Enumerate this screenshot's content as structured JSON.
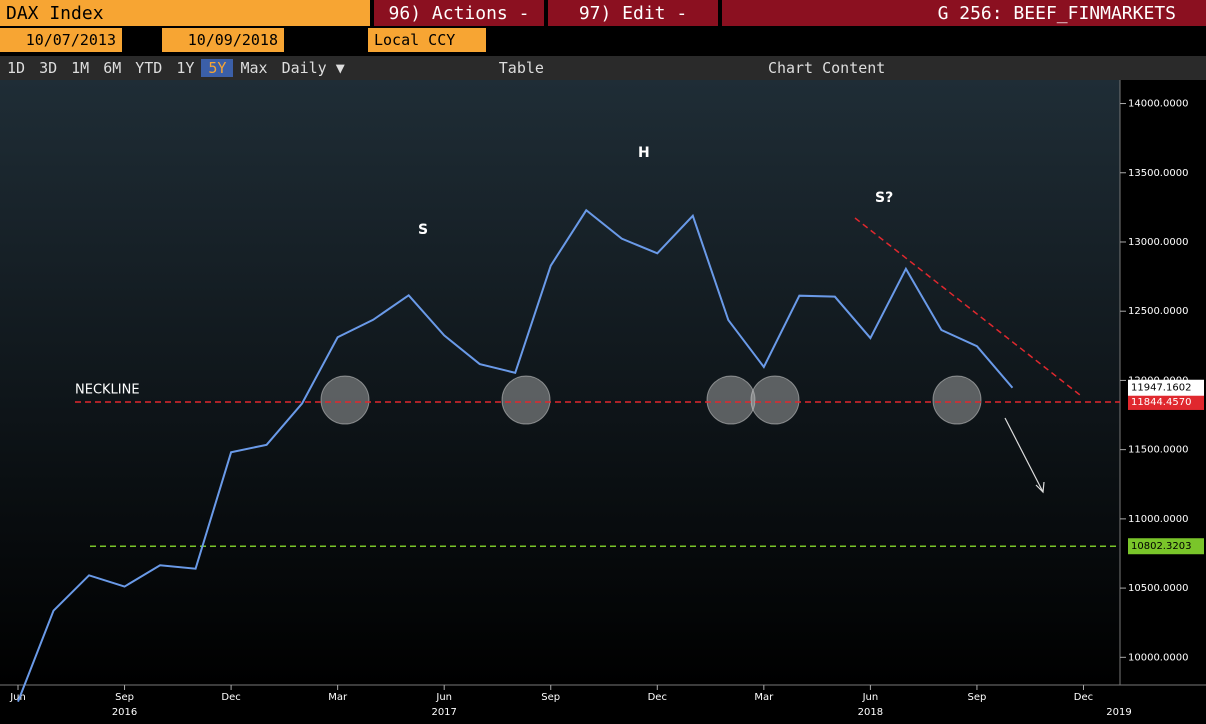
{
  "header": {
    "security": "DAX Index",
    "actions": "96) Actions -",
    "edit": "97) Edit -",
    "page": "G 256: BEEF_FINMARKETS"
  },
  "range": {
    "start": "10/07/2013",
    "end": "10/09/2018",
    "currency": "Local CCY"
  },
  "toolbar": {
    "periods": [
      "1D",
      "3D",
      "1M",
      "6M",
      "YTD",
      "1Y",
      "5Y",
      "Max"
    ],
    "frequency": "Daily ▼",
    "table": "Table",
    "content": "Chart Content"
  },
  "chart_data": {
    "type": "line",
    "annotations": {
      "neckline": "NECKLINE",
      "left_shoulder": "S",
      "head": "H",
      "right_shoulder": "S?"
    },
    "x": [
      "2016-06",
      "2016-07",
      "2016-08",
      "2016-09",
      "2016-10",
      "2016-11",
      "2016-12",
      "2017-01",
      "2017-02",
      "2017-03",
      "2017-04",
      "2017-05",
      "2017-06",
      "2017-07",
      "2017-08",
      "2017-09",
      "2017-10",
      "2017-11",
      "2017-12",
      "2018-01",
      "2018-02",
      "2018-03",
      "2018-04",
      "2018-05",
      "2018-06",
      "2018-07",
      "2018-08",
      "2018-09",
      "2018-10"
    ],
    "series": [
      {
        "name": "DAX Index",
        "color": "#6a9ae8",
        "values": [
          9680,
          10337,
          10592,
          10511,
          10665,
          10640,
          11481,
          11535,
          11834,
          12312,
          12438,
          12615,
          12325,
          12118,
          12055,
          12829,
          13229,
          13024,
          12918,
          13189,
          12436,
          12097,
          12612,
          12605,
          12306,
          12806,
          12364,
          12247,
          11947.1602
        ]
      }
    ],
    "levels": [
      {
        "value": 11844.457,
        "label": "11844.4570",
        "color": "#e0282e"
      },
      {
        "value": 10802.3203,
        "label": "10802.3203",
        "color": "#7ac52a"
      }
    ],
    "last": {
      "value": 11947.1602,
      "label": "11947.1602"
    },
    "xlim": [
      "2016-06",
      "2019-01"
    ],
    "xticks": [
      {
        "value": "2016-06",
        "label": "Jun"
      },
      {
        "value": "2016-09",
        "label": "Sep"
      },
      {
        "value": "2016-12",
        "label": "Dec"
      },
      {
        "value": "2017-03",
        "label": "Mar"
      },
      {
        "value": "2017-06",
        "label": "Jun"
      },
      {
        "value": "2017-09",
        "label": "Sep"
      },
      {
        "value": "2017-12",
        "label": "Dec"
      },
      {
        "value": "2018-03",
        "label": "Mar"
      },
      {
        "value": "2018-06",
        "label": "Jun"
      },
      {
        "value": "2018-09",
        "label": "Sep"
      },
      {
        "value": "2018-12",
        "label": "Dec"
      }
    ],
    "year_labels": [
      {
        "value": "2016-09",
        "label": "2016"
      },
      {
        "value": "2017-06",
        "label": "2017"
      },
      {
        "value": "2018-06",
        "label": "2018"
      },
      {
        "value": "2019-01",
        "label": "2019"
      }
    ],
    "ylim": [
      9800,
      14170
    ],
    "yticks": [
      {
        "value": 10000,
        "label": "10000.0000"
      },
      {
        "value": 10500,
        "label": "10500.0000"
      },
      {
        "value": 11000,
        "label": "11000.0000"
      },
      {
        "value": 11500,
        "label": "11500.0000"
      },
      {
        "value": 12000,
        "label": "12000.0000"
      },
      {
        "value": 12500,
        "label": "12500.0000"
      },
      {
        "value": 13000,
        "label": "13000.0000"
      },
      {
        "value": 13500,
        "label": "13500.0000"
      },
      {
        "value": 14000,
        "label": "14000.0000"
      }
    ]
  }
}
